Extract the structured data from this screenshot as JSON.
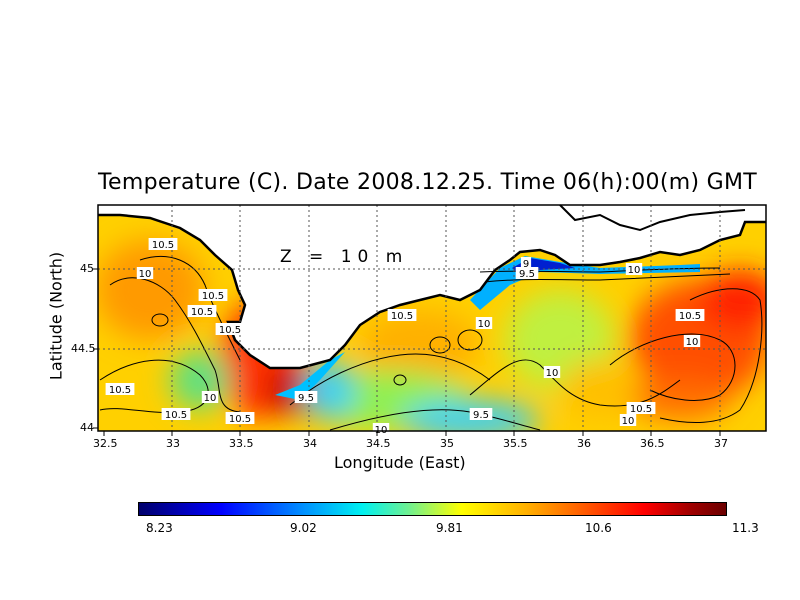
{
  "title": "Temperature (C). Date 2008.12.25. Time 06(h):00(m) GMT",
  "depth_label": "Z = 10 m",
  "xlabel": "Longitude (East)",
  "ylabel": "Latitude (North)",
  "x_ticks": [
    "32.5",
    "33",
    "33.5",
    "34",
    "34.5",
    "35",
    "35.5",
    "36",
    "36.5",
    "37"
  ],
  "y_ticks": [
    "44",
    "44.5",
    "45"
  ],
  "colorbar": {
    "min": 8.23,
    "max": 11.3,
    "tick_labels": [
      "8.23",
      "9.02",
      "9.81",
      "10.6",
      "11.3"
    ]
  },
  "contour_labels": [
    "10.5",
    "10",
    "10.5",
    "10.5",
    "10.5",
    "10",
    "10.5",
    "10.5",
    "10.5",
    "9.5",
    "9",
    "9.5",
    "10",
    "10",
    "10.5",
    "10",
    "10",
    "10.5",
    "10",
    "9.5",
    "10.5",
    "10"
  ],
  "colors": {
    "cold": "#00006b",
    "mid": "#ffff00",
    "warm": "#6b0000",
    "land": "#ffffff",
    "coastline": "#000000"
  }
}
